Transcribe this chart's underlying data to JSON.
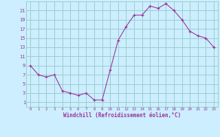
{
  "x": [
    0,
    1,
    2,
    3,
    4,
    5,
    6,
    7,
    8,
    9,
    10,
    11,
    12,
    13,
    14,
    15,
    16,
    17,
    18,
    19,
    20,
    21,
    22,
    23
  ],
  "y": [
    9,
    7,
    6.5,
    7,
    3.5,
    3,
    2.5,
    3,
    1.5,
    1.5,
    8,
    14.5,
    17.5,
    20,
    20,
    22,
    21.5,
    22.5,
    21,
    19,
    16.5,
    15.5,
    15,
    13
  ],
  "line_color": "#993399",
  "marker": "+",
  "bg_color": "#cceeff",
  "grid_color": "#99cccc",
  "xlabel": "Windchill (Refroidissement éolien,°C)",
  "xlabel_color": "#993399",
  "tick_color": "#993399",
  "ylim": [
    0,
    22
  ],
  "xlim": [
    -0.5,
    23.5
  ],
  "yticks": [
    1,
    3,
    5,
    7,
    9,
    11,
    13,
    15,
    17,
    19,
    21
  ],
  "xticks": [
    0,
    1,
    2,
    3,
    4,
    5,
    6,
    7,
    8,
    9,
    10,
    11,
    12,
    13,
    14,
    15,
    16,
    17,
    18,
    19,
    20,
    21,
    22,
    23
  ],
  "xtick_labels": [
    "0",
    "1",
    "2",
    "3",
    "4",
    "5",
    "6",
    "7",
    "8",
    "9",
    "10",
    "11",
    "12",
    "13",
    "14",
    "15",
    "16",
    "17",
    "18",
    "19",
    "20",
    "21",
    "22",
    "23"
  ]
}
